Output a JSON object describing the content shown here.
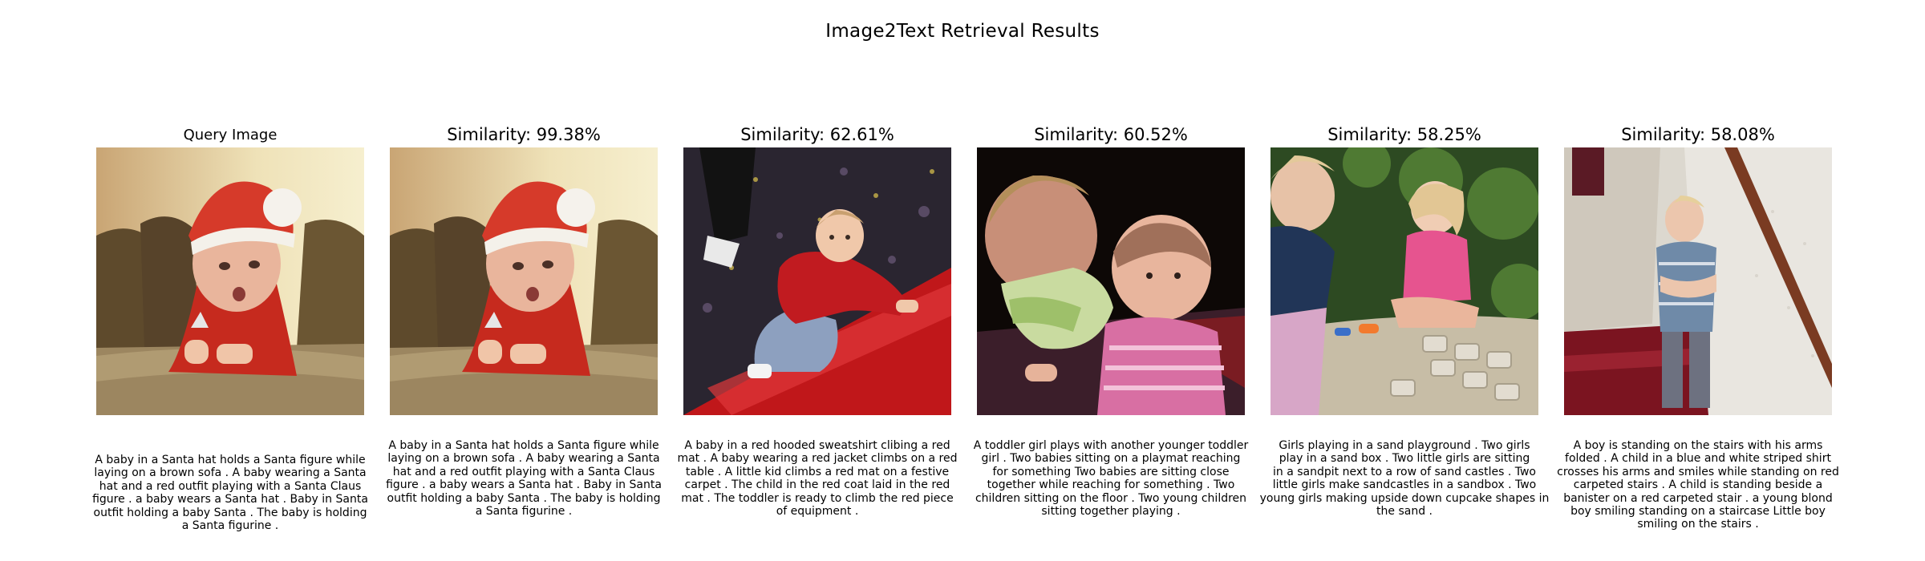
{
  "figure": {
    "title": "Image2Text Retrieval Results"
  },
  "query": {
    "title": "Query Image",
    "image": "baby-in-santa-hat-on-sofa",
    "caption_lines": [
      "A baby in a Santa hat holds a Santa figure while",
      "laying on a brown sofa . A baby wearing a Santa",
      "hat and a red outfit playing with a Santa Claus",
      "figure . a baby wears a Santa hat . Baby in Santa",
      "outfit holding a baby Santa . The baby is holding",
      "a Santa figurine ."
    ]
  },
  "results": [
    {
      "title": "Similarity: 99.38%",
      "image": "baby-in-santa-hat-on-sofa",
      "caption_lines": [
        "A baby in a Santa hat holds a Santa figure while",
        "laying on a brown sofa . A baby wearing a Santa",
        "hat and a red outfit playing with a Santa Claus",
        "figure . a baby wears a Santa hat . Baby in Santa",
        "outfit holding a baby Santa . The baby is holding",
        "a Santa figurine ."
      ]
    },
    {
      "title": "Similarity: 62.61%",
      "image": "baby-climbing-red-mat",
      "caption_lines": [
        "A baby in a red hooded sweatshirt clibing a red",
        "mat . A baby wearing a red jacket climbs on a red",
        "table . A little kid climbs a red mat on a festive",
        "carpet . The child in the red coat laid in the red",
        "mat . The toddler is ready to climb the red piece",
        "of equipment ."
      ]
    },
    {
      "title": "Similarity: 60.52%",
      "image": "two-babies-on-playmat",
      "caption_lines": [
        "A toddler girl plays with another younger toddler",
        "girl . Two babies sitting on a playmat reaching",
        "for something Two babies are sitting close",
        "together while reaching for something . Two",
        "children sitting on the floor . Two young children",
        "sitting together playing ."
      ]
    },
    {
      "title": "Similarity: 58.25%",
      "image": "girls-in-sandbox",
      "caption_lines": [
        "Girls playing in a sand playground . Two girls",
        "play in a sand box . Two little girls are sitting",
        "in a sandpit next to a row of sand castles . Two",
        "little girls make sandcastles in a sandbox . Two",
        "young girls making upside down cupcake shapes in",
        "the sand ."
      ]
    },
    {
      "title": "Similarity: 58.08%",
      "image": "boy-on-stairs",
      "caption_lines": [
        "A boy is standing on the stairs with his arms",
        "folded . A child in a blue and white striped shirt",
        "crosses his arms and smiles while standing on red",
        "carpeted stairs . A child is standing beside a",
        "banister on a red carpeted stair . a young blond",
        "boy smiling standing on a staircase Little boy",
        "smiling on the stairs ."
      ]
    }
  ]
}
